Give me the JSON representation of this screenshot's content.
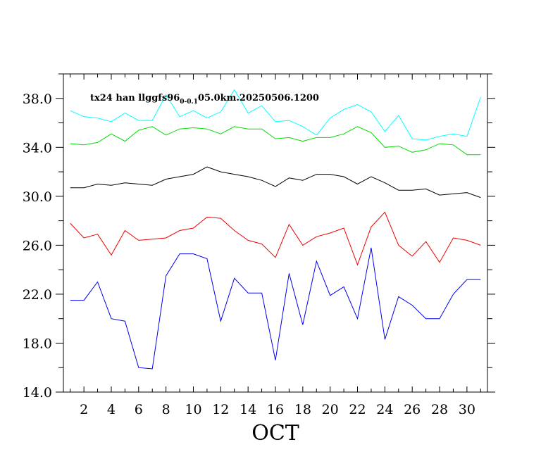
{
  "chart_data": {
    "type": "line",
    "title": "",
    "xlabel": "OCT",
    "ylabel": "",
    "annotation": {
      "prefix": "tx24 han llggfs96",
      "subscript": "0-0.1",
      "suffix": "05.0km.20250506.1200"
    },
    "xlim": [
      0.5,
      31.5
    ],
    "ylim": [
      14,
      40
    ],
    "x_ticks": [
      "2",
      "4",
      "6",
      "8",
      "10",
      "12",
      "14",
      "16",
      "18",
      "20",
      "22",
      "24",
      "26",
      "28",
      "30"
    ],
    "y_ticks": [
      "14.0",
      "18.0",
      "22.0",
      "26.0",
      "30.0",
      "34.0",
      "38.0"
    ],
    "grid": false,
    "x": [
      1,
      2,
      3,
      4,
      5,
      6,
      7,
      8,
      9,
      10,
      11,
      12,
      13,
      14,
      15,
      16,
      17,
      18,
      19,
      20,
      21,
      22,
      23,
      24,
      25,
      26,
      27,
      28,
      29,
      30,
      31
    ],
    "series": [
      {
        "color": "#00ffff",
        "values": [
          37.0,
          36.5,
          36.4,
          36.1,
          36.8,
          36.2,
          36.2,
          38.3,
          36.5,
          37.0,
          36.4,
          36.9,
          38.7,
          36.8,
          37.4,
          36.1,
          36.2,
          35.7,
          35.0,
          36.4,
          37.1,
          37.5,
          36.9,
          35.3,
          36.6,
          34.7,
          34.6,
          34.9,
          35.1,
          34.9,
          38.1
        ]
      },
      {
        "color": "#00dd00",
        "values": [
          34.3,
          34.2,
          34.4,
          35.1,
          34.5,
          35.4,
          35.7,
          35.0,
          35.5,
          35.6,
          35.5,
          35.1,
          35.7,
          35.5,
          35.5,
          34.7,
          34.8,
          34.5,
          34.8,
          34.8,
          35.1,
          35.7,
          35.2,
          34.0,
          34.1,
          33.6,
          33.8,
          34.3,
          34.2,
          33.4,
          33.4
        ]
      },
      {
        "color": "#000000",
        "values": [
          30.7,
          30.7,
          31.0,
          30.9,
          31.1,
          31.0,
          30.9,
          31.4,
          31.6,
          31.8,
          32.4,
          32.0,
          31.8,
          31.6,
          31.3,
          30.8,
          31.5,
          31.3,
          31.8,
          31.8,
          31.6,
          31.0,
          31.6,
          31.1,
          30.5,
          30.5,
          30.6,
          30.1,
          30.2,
          30.3,
          29.9
        ]
      },
      {
        "color": "#ee0000",
        "values": [
          27.8,
          26.6,
          26.9,
          25.2,
          27.2,
          26.4,
          26.5,
          26.6,
          27.2,
          27.4,
          28.3,
          28.2,
          27.2,
          26.4,
          26.1,
          25.0,
          27.7,
          26.0,
          26.7,
          27.0,
          27.4,
          24.4,
          27.5,
          28.7,
          26.0,
          25.1,
          26.3,
          24.6,
          26.6,
          26.4,
          26.0
        ]
      },
      {
        "color": "#0000ee",
        "values": [
          21.5,
          21.5,
          23.0,
          20.0,
          19.8,
          16.0,
          15.9,
          23.5,
          25.3,
          25.3,
          24.9,
          19.8,
          23.3,
          22.1,
          22.1,
          16.6,
          23.7,
          19.5,
          24.7,
          21.9,
          22.6,
          20.0,
          25.8,
          18.3,
          21.8,
          21.1,
          20.0,
          20.0,
          22.0,
          23.2,
          23.2
        ]
      }
    ]
  }
}
